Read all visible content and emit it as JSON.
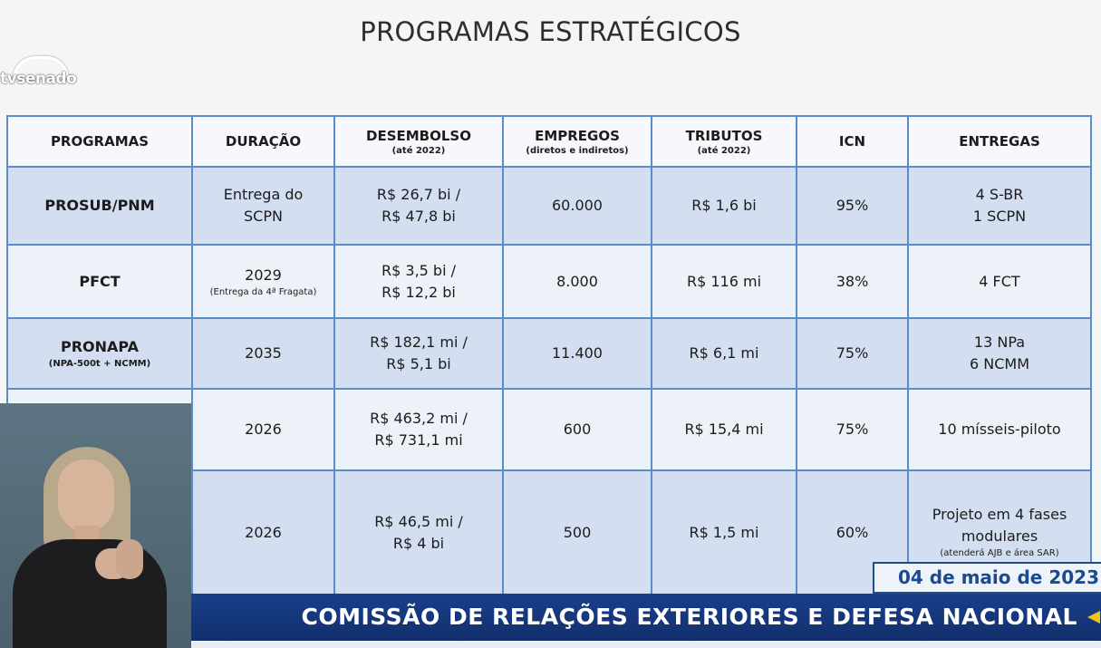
{
  "slide": {
    "title": "PROGRAMAS ESTRATÉGICOS"
  },
  "logo": {
    "text": "tvsenado"
  },
  "table": {
    "headers": [
      {
        "label": "PROGRAMAS",
        "sub": ""
      },
      {
        "label": "DURAÇÃO",
        "sub": ""
      },
      {
        "label": "DESEMBOLSO",
        "sub": "(até 2022)"
      },
      {
        "label": "EMPREGOS",
        "sub": "(diretos e indiretos)"
      },
      {
        "label": "TRIBUTOS",
        "sub": "(até 2022)"
      },
      {
        "label": "ICN",
        "sub": ""
      },
      {
        "label": "ENTREGAS",
        "sub": ""
      }
    ],
    "rows": [
      {
        "programa": "PROSUB/PNM",
        "programa_sub": "",
        "duracao_l1": "Entrega do",
        "duracao_l2": "SCPN",
        "duracao_note": "",
        "desembolso_l1": "R$ 26,7 bi /",
        "desembolso_l2": "R$ 47,8 bi",
        "empregos": "60.000",
        "tributos": "R$ 1,6 bi",
        "icn": "95%",
        "entregas_l1": "4 S-BR",
        "entregas_l2": "1 SCPN",
        "entregas_note": ""
      },
      {
        "programa": "PFCT",
        "programa_sub": "",
        "duracao_l1": "2029",
        "duracao_l2": "",
        "duracao_note": "(Entrega da 4ª Fragata)",
        "desembolso_l1": "R$ 3,5 bi /",
        "desembolso_l2": "R$ 12,2 bi",
        "empregos": "8.000",
        "tributos": "R$ 116 mi",
        "icn": "38%",
        "entregas_l1": "4 FCT",
        "entregas_l2": "",
        "entregas_note": ""
      },
      {
        "programa": "PRONAPA",
        "programa_sub": "(NPA-500t + NCMM)",
        "duracao_l1": "2035",
        "duracao_l2": "",
        "duracao_note": "",
        "desembolso_l1": "R$ 182,1 mi /",
        "desembolso_l2": "R$ 5,1 bi",
        "empregos": "11.400",
        "tributos": "R$ 6,1 mi",
        "icn": "75%",
        "entregas_l1": "13 NPa",
        "entregas_l2": "6 NCMM",
        "entregas_note": ""
      },
      {
        "programa": "",
        "programa_sub": "",
        "duracao_l1": "2026",
        "duracao_l2": "",
        "duracao_note": "",
        "desembolso_l1": "R$ 463,2 mi /",
        "desembolso_l2": "R$ 731,1 mi",
        "empregos": "600",
        "tributos": "R$ 15,4 mi",
        "icn": "75%",
        "entregas_l1": "10 mísseis-piloto",
        "entregas_l2": "",
        "entregas_note": ""
      },
      {
        "programa": "",
        "programa_sub": "",
        "duracao_l1": "2026",
        "duracao_l2": "",
        "duracao_note": "",
        "desembolso_l1": "R$ 46,5 mi /",
        "desembolso_l2": "R$ 4 bi",
        "empregos": "500",
        "tributos": "R$ 1,5 mi",
        "icn": "60%",
        "entregas_l1": "Projeto em 4 fases",
        "entregas_l2": "modulares",
        "entregas_note": "(atenderá AJB e área SAR)"
      }
    ]
  },
  "overlay": {
    "date": "04 de maio de 2023",
    "banner": "COMISSÃO DE RELAÇÕES EXTERIORES E DEFESA NACIONAL"
  },
  "colors": {
    "border": "#5b8bc9",
    "row_shade": "#d3def0",
    "row_light": "#edf1f8",
    "banner_bg": "#19408a",
    "date_text": "#1a4a92",
    "accent_yellow": "#f2c318"
  }
}
